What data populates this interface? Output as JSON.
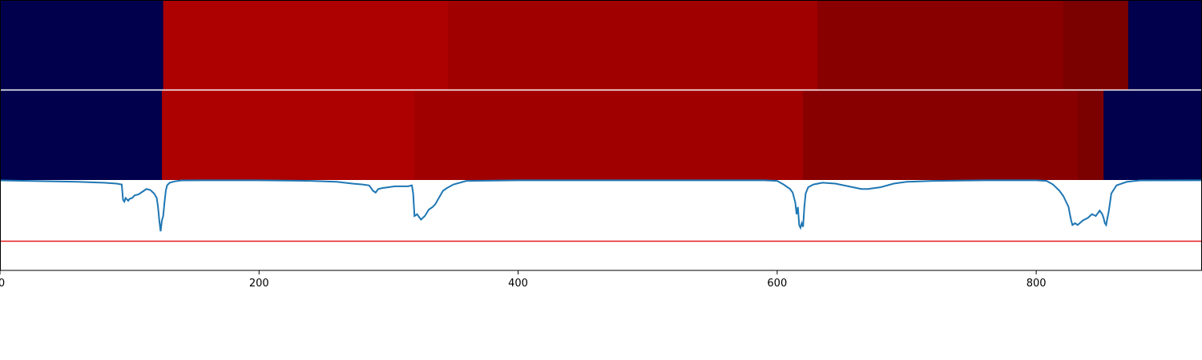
{
  "chart_data": [
    {
      "type": "heatmap",
      "x_range": [
        0,
        928
      ],
      "segments": [
        {
          "x0": 0,
          "x1": 126,
          "color": "#00004c"
        },
        {
          "x0": 126,
          "x1": 346,
          "color": "#ad0000"
        },
        {
          "x0": 346,
          "x1": 631,
          "color": "#a10000"
        },
        {
          "x0": 631,
          "x1": 821,
          "color": "#890000"
        },
        {
          "x0": 821,
          "x1": 871,
          "color": "#7b0000"
        },
        {
          "x0": 871,
          "x1": 928,
          "color": "#00004c"
        }
      ]
    },
    {
      "type": "heatmap",
      "x_range": [
        0,
        928
      ],
      "segments": [
        {
          "x0": 0,
          "x1": 125,
          "color": "#00004c"
        },
        {
          "x0": 125,
          "x1": 320,
          "color": "#ad0000"
        },
        {
          "x0": 320,
          "x1": 620,
          "color": "#a10000"
        },
        {
          "x0": 620,
          "x1": 832,
          "color": "#890000"
        },
        {
          "x0": 832,
          "x1": 852,
          "color": "#7b0000"
        },
        {
          "x0": 852,
          "x1": 928,
          "color": "#00004c"
        }
      ]
    },
    {
      "type": "line",
      "xlim": [
        0,
        928
      ],
      "ylim": [
        -1.0,
        0.0
      ],
      "line_color": "#1f77b4",
      "threshold": {
        "value": -0.68,
        "color": "#e41a1c"
      },
      "x": [
        0,
        60,
        80,
        90,
        94,
        95,
        96,
        97,
        99,
        100,
        102,
        104,
        107,
        110,
        113,
        116,
        119,
        121,
        122,
        123,
        124,
        125,
        126,
        127,
        128,
        129,
        131,
        135,
        140,
        160,
        200,
        240,
        260,
        272,
        280,
        285,
        288,
        290,
        292,
        295,
        300,
        305,
        310,
        315,
        318,
        319,
        320,
        322,
        325,
        328,
        331,
        334,
        336,
        338,
        340,
        342,
        345,
        350,
        360,
        400,
        500,
        590,
        600,
        605,
        610,
        612,
        614,
        615,
        616,
        617,
        618,
        619,
        620,
        621,
        622,
        624,
        628,
        635,
        645,
        655,
        665,
        670,
        675,
        680,
        690,
        700,
        720,
        760,
        800,
        808,
        813,
        818,
        821,
        823,
        825,
        826,
        827,
        828,
        830,
        832,
        836,
        840,
        843,
        846,
        849,
        851,
        852,
        853,
        854,
        855,
        856,
        858,
        862,
        870,
        880,
        928
      ],
      "y": [
        -0.005,
        -0.02,
        -0.03,
        -0.04,
        -0.05,
        -0.22,
        -0.24,
        -0.2,
        -0.23,
        -0.21,
        -0.2,
        -0.17,
        -0.16,
        -0.13,
        -0.1,
        -0.11,
        -0.15,
        -0.2,
        -0.3,
        -0.45,
        -0.57,
        -0.45,
        -0.4,
        -0.25,
        -0.12,
        -0.06,
        -0.03,
        -0.015,
        -0.005,
        -0.003,
        -0.003,
        -0.01,
        -0.02,
        -0.04,
        -0.05,
        -0.06,
        -0.12,
        -0.14,
        -0.1,
        -0.09,
        -0.08,
        -0.07,
        -0.07,
        -0.07,
        -0.06,
        -0.15,
        -0.4,
        -0.38,
        -0.44,
        -0.4,
        -0.33,
        -0.3,
        -0.27,
        -0.22,
        -0.17,
        -0.12,
        -0.09,
        -0.05,
        -0.01,
        -0.003,
        -0.003,
        -0.003,
        -0.01,
        -0.05,
        -0.1,
        -0.14,
        -0.25,
        -0.38,
        -0.3,
        -0.5,
        -0.53,
        -0.48,
        -0.52,
        -0.3,
        -0.15,
        -0.08,
        -0.05,
        -0.03,
        -0.04,
        -0.07,
        -0.1,
        -0.1,
        -0.09,
        -0.08,
        -0.04,
        -0.02,
        -0.01,
        -0.003,
        -0.003,
        -0.01,
        -0.05,
        -0.12,
        -0.18,
        -0.24,
        -0.3,
        -0.38,
        -0.45,
        -0.5,
        -0.48,
        -0.5,
        -0.45,
        -0.42,
        -0.38,
        -0.4,
        -0.34,
        -0.38,
        -0.42,
        -0.48,
        -0.5,
        -0.42,
        -0.35,
        -0.15,
        -0.06,
        -0.02,
        -0.005,
        -0.003
      ]
    }
  ],
  "x_axis": {
    "ticks": [
      0,
      200,
      400,
      600,
      800
    ],
    "tick_labels": [
      "0",
      "200",
      "400",
      "600",
      "800"
    ]
  }
}
